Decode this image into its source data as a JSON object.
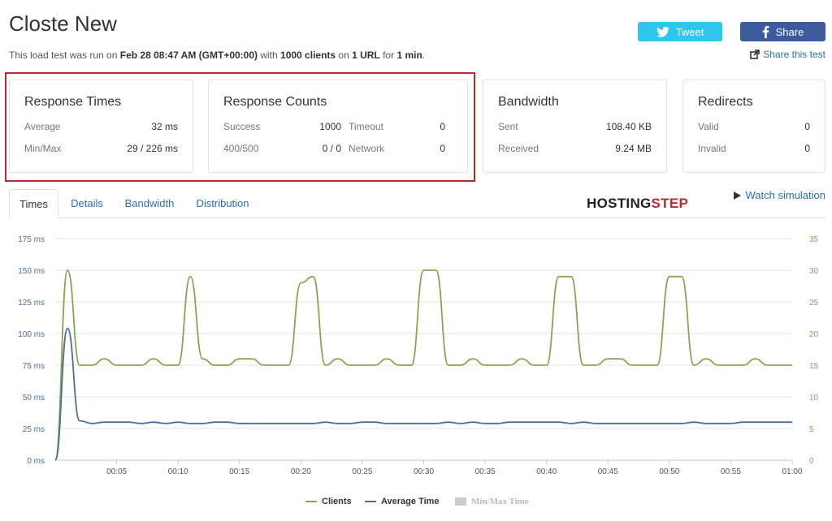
{
  "header": {
    "title": "Closte New",
    "summary": {
      "prefix": "This load test was run on ",
      "date": "Feb 28 08:47 AM (GMT+00:00)",
      "with": " with ",
      "clients": "1000 clients",
      "on": " on ",
      "urls": "1 URL",
      "for": " for ",
      "duration": "1 min",
      "suffix": "."
    },
    "tweet_label": "Tweet",
    "share_label": "Share",
    "share_test_label": "Share this test"
  },
  "cards": {
    "response_times": {
      "title": "Response Times",
      "average_label": "Average",
      "average_value": "32 ms",
      "minmax_label": "Min/Max",
      "minmax_value": "29 / 226 ms"
    },
    "response_counts": {
      "title": "Response Counts",
      "success_label": "Success",
      "success_value": "1000",
      "timeout_label": "Timeout",
      "timeout_value": "0",
      "err_label": "400/500",
      "err_value": "0 / 0",
      "network_label": "Network",
      "network_value": "0"
    },
    "bandwidth": {
      "title": "Bandwidth",
      "sent_label": "Sent",
      "sent_value": "108.40 KB",
      "received_label": "Received",
      "received_value": "9.24 MB"
    },
    "redirects": {
      "title": "Redirects",
      "valid_label": "Valid",
      "valid_value": "0",
      "invalid_label": "Invalid",
      "invalid_value": "0"
    }
  },
  "tabs": [
    {
      "label": "Times",
      "active": true
    },
    {
      "label": "Details",
      "active": false
    },
    {
      "label": "Bandwidth",
      "active": false
    },
    {
      "label": "Distribution",
      "active": false
    }
  ],
  "logo": {
    "part1": "HOSTING",
    "part2": "STEP"
  },
  "watch_label": "Watch simulation",
  "colors": {
    "clients": "#8ca352",
    "average": "#4b6e9a",
    "minmax": "#cccccc",
    "highlight": "#c0282e"
  },
  "chart_data": {
    "type": "line",
    "x_ticks": [
      "00:05",
      "00:10",
      "00:15",
      "00:20",
      "00:25",
      "00:30",
      "00:35",
      "00:40",
      "00:45",
      "00:50",
      "00:55",
      "01:00"
    ],
    "y_left_ticks": [
      "0 ms",
      "25 ms",
      "50 ms",
      "75 ms",
      "100 ms",
      "125 ms",
      "150 ms",
      "175 ms"
    ],
    "y_right_ticks": [
      "0",
      "5",
      "10",
      "15",
      "20",
      "25",
      "30",
      "35"
    ],
    "y_left_range": [
      0,
      175
    ],
    "y_right_range": [
      0,
      35
    ],
    "x_range_seconds": [
      0,
      60
    ],
    "series": [
      {
        "name": "Clients",
        "axis": "right",
        "x": [
          0,
          1,
          2,
          3,
          4,
          5,
          6,
          7,
          8,
          9,
          10,
          11,
          12,
          13,
          14,
          15,
          16,
          17,
          18,
          19,
          20,
          21,
          22,
          23,
          24,
          25,
          26,
          27,
          28,
          29,
          30,
          31,
          32,
          33,
          34,
          35,
          36,
          37,
          38,
          39,
          40,
          41,
          42,
          43,
          44,
          45,
          46,
          47,
          48,
          49,
          50,
          51,
          52,
          53,
          54,
          55,
          56,
          57,
          58,
          59,
          60
        ],
        "values": [
          0,
          30,
          15,
          15,
          16,
          15,
          15,
          15,
          16,
          15,
          15,
          29,
          16,
          15,
          15,
          16,
          16,
          15,
          15,
          15,
          28,
          29,
          15,
          16,
          15,
          15,
          15,
          16,
          15,
          15,
          30,
          30,
          15,
          15,
          16,
          15,
          15,
          15,
          16,
          15,
          15,
          29,
          29,
          15,
          15,
          16,
          16,
          15,
          15,
          15,
          29,
          29,
          15,
          16,
          15,
          15,
          15,
          16,
          15,
          15,
          15
        ]
      },
      {
        "name": "Average Time",
        "axis": "left",
        "x": [
          0,
          1,
          2,
          3,
          4,
          5,
          6,
          7,
          8,
          9,
          10,
          11,
          12,
          13,
          14,
          15,
          16,
          17,
          18,
          19,
          20,
          21,
          22,
          23,
          24,
          25,
          26,
          27,
          28,
          29,
          30,
          31,
          32,
          33,
          34,
          35,
          36,
          37,
          38,
          39,
          40,
          41,
          42,
          43,
          44,
          45,
          46,
          47,
          48,
          49,
          50,
          51,
          52,
          53,
          54,
          55,
          56,
          57,
          58,
          59,
          60
        ],
        "values": [
          0,
          104,
          31,
          29,
          30,
          30,
          30,
          29,
          30,
          29,
          30,
          29,
          29,
          30,
          30,
          29,
          29,
          29,
          29,
          29,
          29,
          29,
          30,
          29,
          29,
          30,
          30,
          29,
          29,
          29,
          29,
          29,
          30,
          29,
          30,
          29,
          29,
          30,
          30,
          30,
          30,
          30,
          29,
          30,
          29,
          29,
          29,
          29,
          29,
          29,
          29,
          29,
          30,
          29,
          29,
          29,
          30,
          30,
          30,
          30,
          30
        ]
      },
      {
        "name": "Min/Max Time",
        "axis": "left",
        "hidden": true,
        "x": [],
        "values": []
      }
    ],
    "grid": true,
    "legend": "bottom-center"
  }
}
